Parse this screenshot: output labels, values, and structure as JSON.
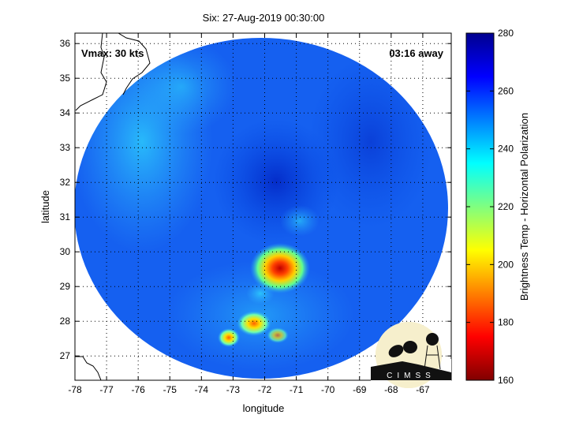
{
  "chart_data": {
    "type": "heatmap",
    "title": "Six: 27-Aug-2019 00:30:00",
    "xlabel": "longitude",
    "ylabel": "latitude",
    "xlim": [
      -78,
      -66.1
    ],
    "ylim": [
      26.3,
      36.3
    ],
    "xticks": [
      -78,
      -77,
      -76,
      -75,
      -74,
      -73,
      -72,
      -71,
      -70,
      -69,
      -68,
      -67
    ],
    "yticks": [
      27,
      28,
      29,
      30,
      31,
      32,
      33,
      34,
      35,
      36
    ],
    "grid": true,
    "colorbar": {
      "label": "Brightness Temp - Horizontal Polarization",
      "range": [
        160,
        280
      ],
      "ticks": [
        160,
        180,
        200,
        220,
        240,
        260,
        280
      ],
      "colormap": "jet",
      "position": "right"
    },
    "annotations": {
      "vmax": "Vmax: 30 kts",
      "time_away": "03:16 away"
    },
    "features": [
      {
        "kind": "warm-core minimum",
        "lon": -71.6,
        "lat": 29.5,
        "value": 185
      },
      {
        "kind": "convection",
        "lon": -72.4,
        "lat": 27.9,
        "value": 200
      },
      {
        "kind": "convection",
        "lon": -73.1,
        "lat": 27.5,
        "value": 205
      },
      {
        "kind": "convection",
        "lon": -71.5,
        "lat": 27.6,
        "value": 215
      }
    ],
    "background_value": 262
  },
  "logo": {
    "text": "CIMSS"
  }
}
